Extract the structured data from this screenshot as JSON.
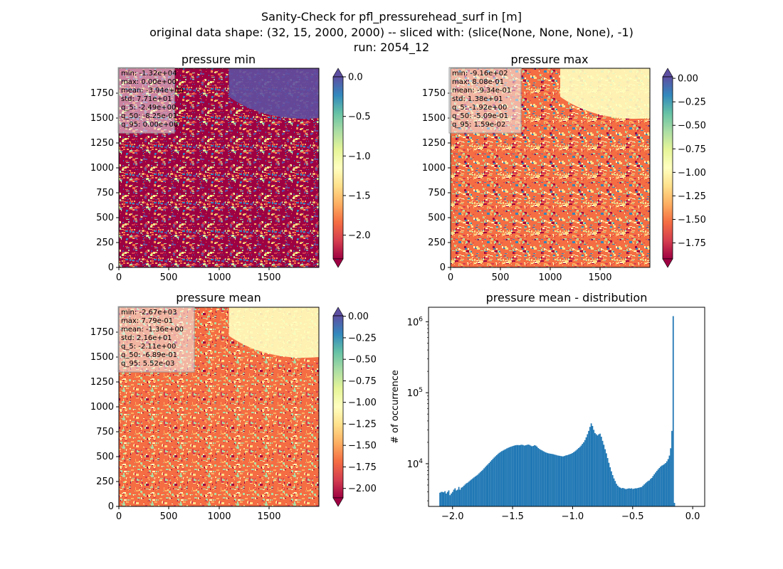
{
  "figure": {
    "title_line1": "Sanity-Check for pfl_pressurehead_surf in [m]",
    "title_line2": "original data shape: (32, 15, 2000, 2000) -- sliced with: (slice(None, None, None), -1)",
    "title_line3": "run: 2054_12"
  },
  "colors": {
    "spectral_ramp": [
      "#9e0142",
      "#d53e4f",
      "#f46d43",
      "#fdae61",
      "#fee08b",
      "#ffffbf",
      "#e6f598",
      "#abdda4",
      "#66c2a5",
      "#3288bd",
      "#5e4fa2"
    ],
    "hist_bar": "#1f77b4",
    "stats_box_bg": "#f0f0f0"
  },
  "chart_data": [
    {
      "type": "heatmap",
      "title": "pressure min",
      "xlim": [
        0,
        2000
      ],
      "ylim": [
        0,
        2000
      ],
      "xticks": [
        "0",
        "500",
        "1000",
        "1500"
      ],
      "yticks": [
        "0",
        "250",
        "500",
        "750",
        "1000",
        "1250",
        "1500",
        "1750"
      ],
      "colorbar": {
        "vmin": -2.3,
        "vmax": 0.0,
        "extend": "both",
        "ticks": [
          "0.0",
          "−0.5",
          "−1.0",
          "−1.5",
          "−2.0"
        ],
        "tick_values": [
          0.0,
          -0.5,
          -1.0,
          -1.5,
          -2.0
        ]
      },
      "stats": [
        "min: -1.32e+04",
        "max: 0.00e+00",
        "mean: -3.94e+00",
        "std: 7.71e+01",
        "q_5: -2.49e+00",
        "q_50: -8.25e-01",
        "q_95: 0.00e+00"
      ]
    },
    {
      "type": "heatmap",
      "title": "pressure max",
      "xlim": [
        0,
        2000
      ],
      "ylim": [
        0,
        2000
      ],
      "xticks": [
        "0",
        "500",
        "1000",
        "1500"
      ],
      "yticks": [
        "0",
        "250",
        "500",
        "750",
        "1000",
        "1250",
        "1500",
        "1750"
      ],
      "colorbar": {
        "vmin": -1.92,
        "vmax": 0.0159,
        "extend": "both",
        "ticks": [
          "0.00",
          "−0.25",
          "−0.50",
          "−0.75",
          "−1.00",
          "−1.25",
          "−1.50",
          "−1.75"
        ],
        "tick_values": [
          0.0,
          -0.25,
          -0.5,
          -0.75,
          -1.0,
          -1.25,
          -1.5,
          -1.75
        ]
      },
      "stats": [
        "min: -9.16e+02",
        "max: 8.08e-01",
        "mean: -9.34e-01",
        "std: 1.38e+01",
        "q_5: -1.92e+00",
        "q_50: -5.09e-01",
        "q_95: 1.59e-02"
      ]
    },
    {
      "type": "heatmap",
      "title": "pressure mean",
      "xlim": [
        0,
        2000
      ],
      "ylim": [
        0,
        2000
      ],
      "xticks": [
        "0",
        "500",
        "1000",
        "1500"
      ],
      "yticks": [
        "0",
        "250",
        "500",
        "750",
        "1000",
        "1250",
        "1500",
        "1750"
      ],
      "colorbar": {
        "vmin": -2.11,
        "vmax": 0.00552,
        "extend": "both",
        "ticks": [
          "0.00",
          "−0.25",
          "−0.50",
          "−0.75",
          "−1.00",
          "−1.25",
          "−1.50",
          "−1.75",
          "−2.00"
        ],
        "tick_values": [
          0.0,
          -0.25,
          -0.5,
          -0.75,
          -1.0,
          -1.25,
          -1.5,
          -1.75,
          -2.0
        ]
      },
      "stats": [
        "min: -2.67e+03",
        "max: 7.79e-01",
        "mean: -1.36e+00",
        "std: 2.16e+01",
        "q_5: -2.11e+00",
        "q_50: -6.89e-01",
        "q_95: 5.52e-03"
      ]
    },
    {
      "type": "bar",
      "title": "pressure mean - distribution",
      "ylabel": "# of occurrence",
      "yscale": "log",
      "xlim": [
        -2.2,
        0.1
      ],
      "ylim": [
        2500,
        1600000
      ],
      "xticks": [
        "−2.0",
        "−1.5",
        "−1.0",
        "−0.5",
        "0.0"
      ],
      "xtick_values": [
        -2.0,
        -1.5,
        -1.0,
        -0.5,
        0.0
      ],
      "ytick_labels": [
        {
          "base": "10",
          "exp": "4",
          "value": 10000
        },
        {
          "base": "10",
          "exp": "5",
          "value": 100000
        },
        {
          "base": "10",
          "exp": "6",
          "value": 1000000
        }
      ],
      "bin_start": -2.11,
      "bin_width": 0.0105,
      "values": [
        3900,
        4000,
        4000,
        3950,
        4100,
        3800,
        4000,
        4200,
        3600,
        3800,
        4000,
        4300,
        4500,
        4200,
        4300,
        4700,
        4300,
        4600,
        4700,
        4900,
        5100,
        5300,
        5400,
        5600,
        5800,
        6000,
        6200,
        6400,
        6600,
        6800,
        7000,
        7300,
        7600,
        7900,
        8200,
        8600,
        9000,
        9400,
        9800,
        10200,
        10700,
        11200,
        11700,
        12200,
        12700,
        13200,
        13700,
        14200,
        14600,
        15000,
        15300,
        15700,
        16000,
        16400,
        16700,
        17000,
        17300,
        17500,
        17800,
        18000,
        18200,
        18300,
        18300,
        18200,
        18400,
        18500,
        18300,
        18000,
        18200,
        18400,
        18600,
        18400,
        18000,
        17600,
        17800,
        18200,
        18000,
        17400,
        16600,
        16100,
        15700,
        15400,
        15000,
        14700,
        14400,
        14200,
        14000,
        13900,
        13800,
        13700,
        13600,
        13400,
        13300,
        13100,
        13000,
        12900,
        12800,
        12700,
        12700,
        12900,
        13100,
        13200,
        13400,
        13600,
        13800,
        14100,
        14500,
        14900,
        15400,
        16000,
        16600,
        17200,
        18000,
        19000,
        20000,
        21500,
        23500,
        26000,
        29000,
        33000,
        37000,
        34000,
        30000,
        27000,
        26000,
        25000,
        26000,
        26500,
        24000,
        21000,
        18500,
        16000,
        14000,
        12000,
        10300,
        8900,
        7800,
        6900,
        6200,
        5700,
        5200,
        4900,
        4700,
        4600,
        4500,
        4550,
        4500,
        4400,
        4400,
        4450,
        4500,
        4450,
        4500,
        4400,
        4450,
        4500,
        4500,
        4550,
        4600,
        4650,
        4700,
        4900,
        5100,
        5300,
        5500,
        5700,
        5800,
        6100,
        6300,
        6700,
        7100,
        7500,
        7900,
        8300,
        8700,
        9100,
        9400,
        9600,
        9900,
        10200,
        10800,
        11600,
        13000,
        16500,
        29000,
        1200000,
        2800
      ]
    }
  ]
}
